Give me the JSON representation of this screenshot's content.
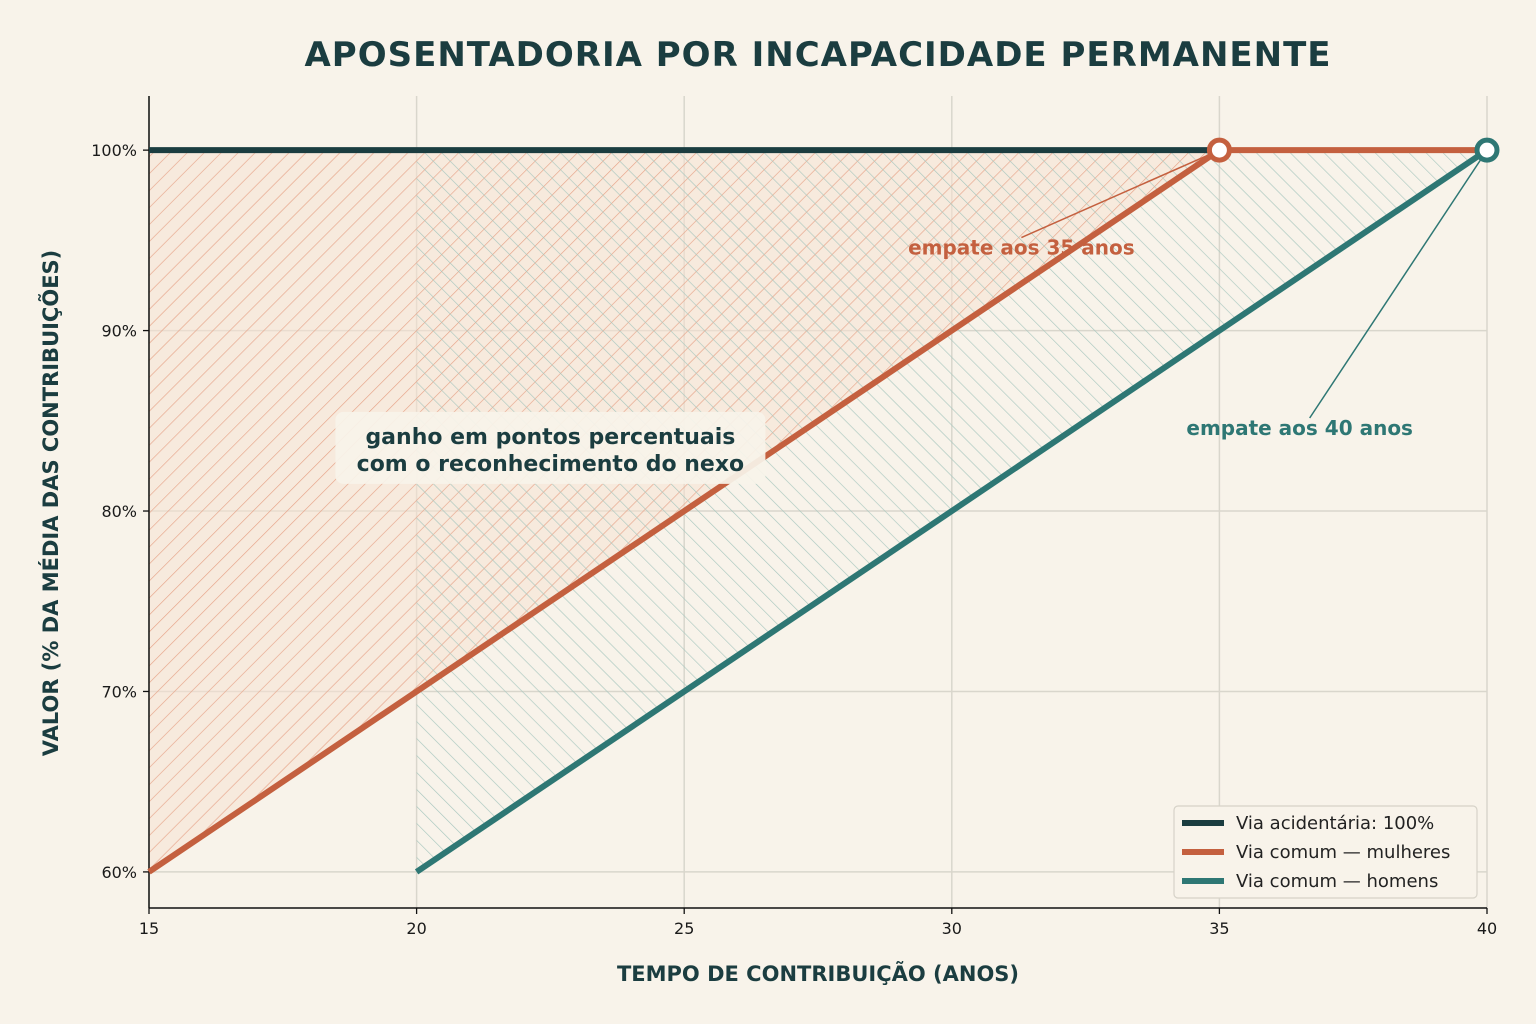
{
  "chart_data": {
    "type": "line",
    "title": "APOSENTADORIA POR INCAPACIDADE PERMANENTE",
    "xlabel": "TEMPO DE CONTRIBUIÇÃO (ANOS)",
    "ylabel": "VALOR (% DA MÉDIA DAS CONTRIBUIÇÕES)",
    "xlim": [
      15,
      40
    ],
    "ylim": [
      58,
      103
    ],
    "xticks": [
      15,
      20,
      25,
      30,
      35,
      40
    ],
    "xtick_labels": [
      "15",
      "20",
      "25",
      "30",
      "35",
      "40"
    ],
    "yticks": [
      60,
      70,
      80,
      90,
      100
    ],
    "ytick_labels": [
      "60%",
      "70%",
      "80%",
      "90%",
      "100%"
    ],
    "grid": true,
    "legend_position": "bottom-right",
    "series": [
      {
        "name": "Via acidentária: 100%",
        "color": "#1b3d40",
        "x": [
          15,
          35
        ],
        "y": [
          100,
          100
        ]
      },
      {
        "name": "Via comum — mulheres",
        "color": "#c4603f",
        "x": [
          15,
          35,
          40
        ],
        "y": [
          60,
          100,
          100
        ]
      },
      {
        "name": "Via comum — homens",
        "color": "#2e7774",
        "x": [
          20,
          40
        ],
        "y": [
          60,
          100
        ]
      }
    ],
    "markers": [
      {
        "x": 35,
        "y": 100,
        "color": "#c4603f"
      },
      {
        "x": 40,
        "y": 100,
        "color": "#2e7774"
      }
    ],
    "annotations": {
      "women": {
        "text": "empate aos 35 anos",
        "color": "#c4603f",
        "x": 35,
        "y": 100,
        "text_x": 31.3,
        "text_y": 94.6
      },
      "men": {
        "text": "empate aos 40 anos",
        "color": "#2e7774",
        "x": 40,
        "y": 100,
        "text_x": 36.5,
        "text_y": 84.6
      },
      "gain": {
        "line1": "ganho em pontos percentuais",
        "line2": "com o reconhecimento do nexo",
        "x": 22.5,
        "y": 83
      }
    }
  }
}
